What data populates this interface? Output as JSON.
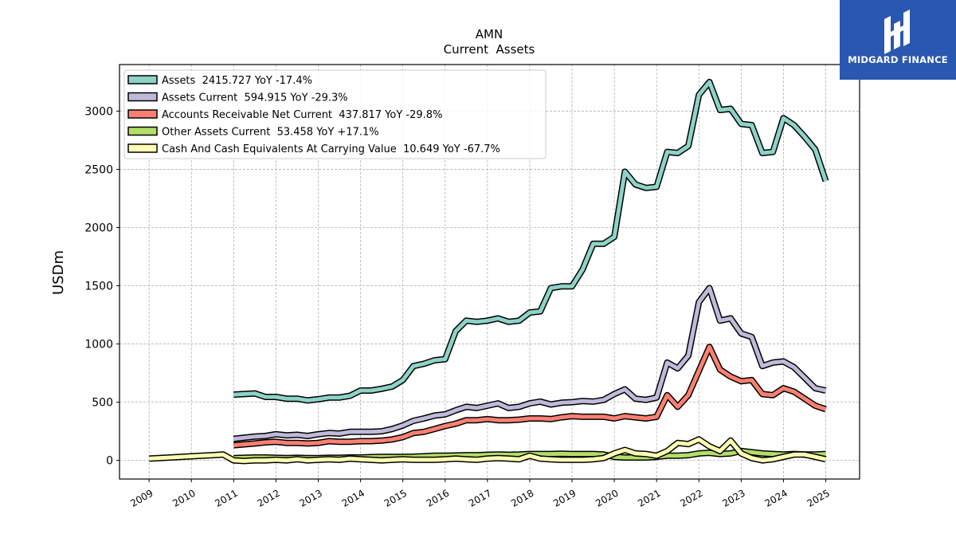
{
  "chart_data": {
    "type": "line",
    "title": "AMN",
    "subtitle": "Current  Assets",
    "ylabel": "USDm",
    "xlabel": "",
    "xlim": [
      2008.3,
      2025.8
    ],
    "ylim": [
      -160,
      3400
    ],
    "yticks": [
      0,
      500,
      1000,
      1500,
      2000,
      2500,
      3000
    ],
    "xticks": [
      "2009",
      "2010",
      "2011",
      "2012",
      "2013",
      "2014",
      "2015",
      "2016",
      "2017",
      "2018",
      "2019",
      "2020",
      "2021",
      "2022",
      "2023",
      "2024",
      "2025"
    ],
    "grid": true,
    "legend_position": "top-left",
    "series": [
      {
        "name": "Assets  2415.727 YoY -17.4%",
        "color": "#8dd3c7",
        "x": [
          2011.0,
          2011.5,
          2011.75,
          2012.0,
          2012.25,
          2012.5,
          2012.75,
          2013.0,
          2013.25,
          2013.5,
          2013.75,
          2014.0,
          2014.25,
          2014.5,
          2014.75,
          2015.0,
          2015.25,
          2015.5,
          2015.75,
          2016.0,
          2016.25,
          2016.5,
          2016.75,
          2017.0,
          2017.25,
          2017.5,
          2017.75,
          2018.0,
          2018.25,
          2018.5,
          2018.75,
          2019.0,
          2019.25,
          2019.5,
          2019.75,
          2020.0,
          2020.25,
          2020.5,
          2020.75,
          2021.0,
          2021.25,
          2021.5,
          2021.75,
          2022.0,
          2022.25,
          2022.5,
          2022.75,
          2023.0,
          2023.25,
          2023.5,
          2023.75,
          2024.0,
          2024.25,
          2024.5,
          2024.75,
          2025.0
        ],
        "y": [
          565,
          575,
          545,
          545,
          530,
          530,
          515,
          525,
          540,
          540,
          555,
          600,
          600,
          615,
          635,
          690,
          810,
          830,
          860,
          870,
          1110,
          1200,
          1190,
          1200,
          1220,
          1190,
          1200,
          1270,
          1280,
          1480,
          1495,
          1495,
          1640,
          1860,
          1860,
          1920,
          2480,
          2370,
          2340,
          2350,
          2650,
          2640,
          2700,
          3140,
          3250,
          3010,
          3020,
          2890,
          2880,
          2640,
          2650,
          2940,
          2880,
          2780,
          2670,
          2400
        ]
      },
      {
        "name": "Assets Current  594.915 YoY -29.3%",
        "color": "#bebada",
        "x": [
          2011.0,
          2011.5,
          2011.75,
          2012.0,
          2012.25,
          2012.5,
          2012.75,
          2013.0,
          2013.25,
          2013.5,
          2013.75,
          2014.0,
          2014.25,
          2014.5,
          2014.75,
          2015.0,
          2015.25,
          2015.5,
          2015.75,
          2016.0,
          2016.25,
          2016.5,
          2016.75,
          2017.0,
          2017.25,
          2017.5,
          2017.75,
          2018.0,
          2018.25,
          2018.5,
          2018.75,
          2019.0,
          2019.25,
          2019.5,
          2019.75,
          2020.0,
          2020.25,
          2020.5,
          2020.75,
          2021.0,
          2021.25,
          2021.5,
          2021.75,
          2022.0,
          2022.25,
          2022.5,
          2022.75,
          2023.0,
          2023.25,
          2023.5,
          2023.75,
          2024.0,
          2024.25,
          2024.5,
          2024.75,
          2025.0
        ],
        "y": [
          185,
          205,
          210,
          225,
          215,
          220,
          210,
          225,
          235,
          230,
          245,
          245,
          245,
          250,
          270,
          300,
          340,
          360,
          385,
          395,
          430,
          460,
          450,
          470,
          490,
          450,
          460,
          490,
          505,
          480,
          495,
          500,
          510,
          505,
          520,
          570,
          610,
          530,
          520,
          540,
          840,
          790,
          900,
          1360,
          1480,
          1200,
          1220,
          1090,
          1060,
          810,
          840,
          850,
          800,
          710,
          620,
          600
        ]
      },
      {
        "name": "Accounts Receivable Net Current  437.817 YoY -29.8%",
        "color": "#fb8072",
        "x": [
          2011.0,
          2011.5,
          2011.75,
          2012.0,
          2012.25,
          2012.5,
          2012.75,
          2013.0,
          2013.25,
          2013.5,
          2013.75,
          2014.0,
          2014.25,
          2014.5,
          2014.75,
          2015.0,
          2015.25,
          2015.5,
          2015.75,
          2016.0,
          2016.25,
          2016.5,
          2016.75,
          2017.0,
          2017.25,
          2017.5,
          2017.75,
          2018.0,
          2018.25,
          2018.5,
          2018.75,
          2019.0,
          2019.25,
          2019.5,
          2019.75,
          2020.0,
          2020.25,
          2020.5,
          2020.75,
          2021.0,
          2021.25,
          2021.5,
          2021.75,
          2022.0,
          2022.25,
          2022.5,
          2022.75,
          2023.0,
          2023.25,
          2023.5,
          2023.75,
          2024.0,
          2024.25,
          2024.5,
          2024.75,
          2025.0
        ],
        "y": [
          130,
          145,
          155,
          160,
          150,
          150,
          145,
          150,
          165,
          160,
          160,
          165,
          165,
          170,
          180,
          200,
          235,
          245,
          270,
          295,
          315,
          345,
          345,
          355,
          345,
          345,
          350,
          360,
          360,
          355,
          370,
          380,
          375,
          375,
          375,
          360,
          380,
          370,
          360,
          375,
          560,
          460,
          560,
          770,
          975,
          780,
          720,
          680,
          690,
          570,
          560,
          620,
          590,
          530,
          470,
          440
        ]
      },
      {
        "name": "Other Assets Current  53.458 YoY +17.1%",
        "color": "#b3de69",
        "x": [
          2011.0,
          2011.5,
          2011.75,
          2012.0,
          2012.25,
          2012.5,
          2012.75,
          2013.0,
          2013.25,
          2013.5,
          2013.75,
          2014.0,
          2014.25,
          2014.5,
          2014.75,
          2015.0,
          2015.25,
          2015.5,
          2015.75,
          2016.0,
          2016.25,
          2016.5,
          2016.75,
          2017.0,
          2017.25,
          2017.5,
          2017.75,
          2018.0,
          2018.25,
          2018.5,
          2018.75,
          2019.0,
          2019.25,
          2019.5,
          2019.75,
          2020.0,
          2020.25,
          2020.5,
          2020.75,
          2021.0,
          2021.25,
          2021.5,
          2021.75,
          2022.0,
          2022.25,
          2022.5,
          2022.75,
          2023.0,
          2023.25,
          2023.5,
          2023.75,
          2024.0,
          2024.25,
          2024.5,
          2024.75,
          2025.0
        ],
        "y": [
          20,
          25,
          25,
          22,
          20,
          22,
          20,
          20,
          22,
          22,
          25,
          25,
          28,
          30,
          30,
          30,
          32,
          35,
          40,
          40,
          42,
          45,
          45,
          48,
          50,
          48,
          50,
          55,
          55,
          55,
          58,
          55,
          55,
          55,
          50,
          30,
          25,
          25,
          25,
          30,
          40,
          40,
          45,
          60,
          65,
          55,
          60,
          80,
          70,
          60,
          55,
          50,
          55,
          50,
          50,
          55
        ]
      },
      {
        "name": "Cash And Cash Equivalents At Carrying Value  10.649 YoY -67.7%",
        "color": "#ffffb3",
        "x": [
          2009.0,
          2009.5,
          2009.75,
          2010.0,
          2010.25,
          2010.5,
          2010.75,
          2011.0,
          2011.25,
          2011.5,
          2011.75,
          2012.0,
          2012.25,
          2012.5,
          2012.75,
          2013.0,
          2013.25,
          2013.5,
          2013.75,
          2014.0,
          2014.25,
          2014.5,
          2014.75,
          2015.0,
          2015.25,
          2015.5,
          2015.75,
          2016.0,
          2016.25,
          2016.5,
          2016.75,
          2017.0,
          2017.25,
          2017.5,
          2017.75,
          2018.0,
          2018.25,
          2018.5,
          2018.75,
          2019.0,
          2019.25,
          2019.5,
          2019.75,
          2020.0,
          2020.25,
          2020.5,
          2020.75,
          2021.0,
          2021.25,
          2021.5,
          2021.75,
          2022.0,
          2022.25,
          2022.5,
          2022.75,
          2023.0,
          2023.25,
          2023.5,
          2023.75,
          2024.0,
          2024.25,
          2024.5,
          2024.75,
          2025.0
        ],
        "y": [
          15,
          25,
          30,
          35,
          40,
          45,
          50,
          0,
          -5,
          0,
          0,
          5,
          0,
          10,
          0,
          5,
          10,
          5,
          15,
          10,
          5,
          0,
          5,
          10,
          5,
          5,
          5,
          10,
          15,
          10,
          5,
          15,
          20,
          15,
          10,
          40,
          15,
          10,
          5,
          5,
          5,
          10,
          20,
          60,
          90,
          60,
          55,
          40,
          80,
          150,
          140,
          180,
          120,
          80,
          170,
          60,
          20,
          0,
          10,
          30,
          50,
          50,
          30,
          10
        ]
      }
    ]
  },
  "branding": {
    "logo_text": "MIDGARD FINANCE",
    "logo_color": "#2a57b0"
  }
}
